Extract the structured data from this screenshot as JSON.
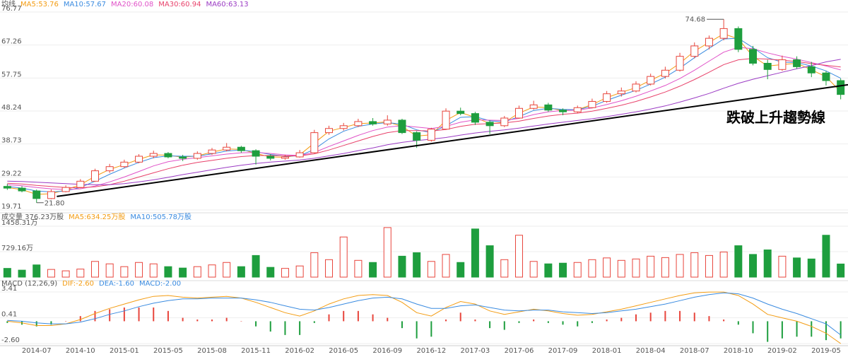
{
  "chart_data": [
    {
      "type": "candlestick",
      "legend_title": "均线",
      "ylim": [
        19.71,
        76.77
      ],
      "yticks": [
        76.77,
        67.26,
        57.75,
        48.24,
        38.73,
        29.22,
        19.71
      ],
      "grid": true,
      "up_color": "#e8453c",
      "down_color": "#1e9e3e",
      "candles": [
        [
          26.5,
          27.2,
          25.5,
          26.0
        ],
        [
          26.0,
          26.6,
          24.8,
          25.2
        ],
        [
          25.2,
          25.6,
          21.8,
          23.0
        ],
        [
          23.0,
          25.6,
          22.8,
          25.0
        ],
        [
          25.0,
          26.8,
          24.8,
          26.2
        ],
        [
          26.2,
          28.6,
          26.0,
          28.0
        ],
        [
          28.0,
          31.6,
          27.8,
          31.0
        ],
        [
          31.0,
          33.0,
          30.4,
          32.2
        ],
        [
          32.2,
          34.2,
          31.8,
          33.5
        ],
        [
          33.5,
          35.8,
          33.2,
          35.2
        ],
        [
          35.2,
          36.8,
          34.6,
          36.0
        ],
        [
          36.0,
          36.4,
          34.6,
          35.0
        ],
        [
          35.0,
          35.6,
          33.8,
          34.6
        ],
        [
          34.6,
          36.6,
          34.2,
          36.0
        ],
        [
          36.0,
          37.6,
          35.6,
          37.0
        ],
        [
          37.0,
          39.0,
          36.6,
          37.8
        ],
        [
          37.8,
          38.2,
          36.2,
          36.8
        ],
        [
          36.8,
          37.2,
          32.8,
          35.2
        ],
        [
          35.2,
          35.8,
          34.0,
          34.6
        ],
        [
          34.6,
          35.6,
          34.2,
          35.0
        ],
        [
          35.0,
          37.0,
          34.8,
          36.2
        ],
        [
          36.2,
          42.8,
          36.0,
          42.0
        ],
        [
          42.0,
          44.0,
          41.4,
          43.2
        ],
        [
          43.2,
          44.8,
          42.6,
          44.0
        ],
        [
          44.0,
          46.0,
          43.6,
          45.2
        ],
        [
          45.2,
          46.2,
          44.0,
          44.5
        ],
        [
          44.5,
          47.0,
          44.0,
          45.6
        ],
        [
          45.6,
          46.0,
          41.6,
          42.0
        ],
        [
          42.0,
          42.4,
          37.6,
          39.8
        ],
        [
          39.8,
          43.4,
          39.4,
          43.0
        ],
        [
          43.0,
          49.0,
          42.8,
          48.2
        ],
        [
          48.2,
          49.2,
          47.0,
          47.5
        ],
        [
          47.5,
          48.0,
          44.2,
          45.0
        ],
        [
          45.0,
          45.6,
          41.6,
          44.0
        ],
        [
          44.0,
          46.8,
          43.6,
          46.2
        ],
        [
          46.2,
          49.8,
          46.0,
          49.0
        ],
        [
          49.0,
          51.2,
          48.6,
          50.0
        ],
        [
          50.0,
          50.6,
          48.0,
          48.5
        ],
        [
          48.5,
          49.0,
          47.0,
          48.0
        ],
        [
          48.0,
          49.8,
          47.6,
          49.2
        ],
        [
          49.2,
          51.8,
          49.0,
          51.0
        ],
        [
          51.0,
          54.0,
          50.6,
          53.2
        ],
        [
          53.2,
          55.0,
          52.4,
          54.0
        ],
        [
          54.0,
          56.8,
          53.6,
          56.0
        ],
        [
          56.0,
          59.0,
          55.6,
          58.2
        ],
        [
          58.2,
          61.0,
          57.6,
          60.0
        ],
        [
          60.0,
          65.0,
          59.6,
          64.0
        ],
        [
          64.0,
          68.0,
          63.4,
          67.0
        ],
        [
          67.0,
          70.0,
          66.0,
          69.2
        ],
        [
          69.2,
          74.68,
          68.6,
          72.0
        ],
        [
          72.0,
          72.6,
          65.2,
          66.0
        ],
        [
          66.0,
          67.0,
          61.4,
          62.0
        ],
        [
          62.0,
          63.0,
          57.4,
          60.2
        ],
        [
          60.2,
          64.2,
          59.8,
          63.0
        ],
        [
          63.0,
          64.0,
          60.4,
          61.0
        ],
        [
          61.0,
          62.4,
          58.0,
          59.2
        ],
        [
          59.2,
          59.8,
          55.6,
          57.0
        ],
        [
          57.0,
          57.6,
          51.6,
          53.0
        ]
      ],
      "max_label": {
        "value": 74.68,
        "label": "74.68"
      },
      "min_label": {
        "value": 21.8,
        "label": "21.80"
      },
      "trendline_values": [
        23.6,
        55.8
      ],
      "annotation": "跌破上升趨勢線",
      "series": [
        {
          "name": "MA5:53.76",
          "color": "#f39c12",
          "values": [
            26.2,
            25.6,
            24.2,
            24.4,
            25.5,
            27.0,
            29.4,
            31.4,
            32.8,
            34.3,
            35.6,
            35.5,
            34.9,
            35.3,
            36.4,
            37.3,
            37.2,
            36.0,
            35.0,
            34.9,
            35.6,
            39.0,
            42.4,
            43.5,
            44.6,
            44.8,
            45.1,
            43.8,
            41.0,
            41.4,
            45.5,
            47.8,
            46.4,
            44.6,
            45.0,
            47.6,
            49.4,
            49.2,
            48.3,
            48.6,
            50.1,
            52.1,
            53.6,
            55.0,
            57.1,
            59.1,
            62.0,
            65.5,
            68.0,
            70.5,
            69.0,
            64.0,
            61.2,
            61.6,
            62.0,
            60.1,
            58.1,
            53.76
          ]
        },
        {
          "name": "MA10:57.67",
          "color": "#3a8be0",
          "values": [
            26.5,
            26.0,
            25.2,
            24.9,
            25.2,
            26.2,
            28.0,
            30.0,
            31.8,
            33.4,
            34.8,
            35.3,
            35.2,
            35.2,
            35.9,
            36.7,
            37.0,
            36.5,
            35.7,
            35.2,
            35.3,
            37.2,
            40.2,
            42.4,
            43.8,
            44.5,
            44.9,
            44.4,
            42.8,
            42.0,
            44.0,
            46.4,
            46.6,
            45.4,
            45.1,
            46.6,
            48.4,
            49.0,
            48.7,
            48.6,
            49.6,
            51.3,
            52.8,
            54.2,
            56.0,
            58.0,
            60.6,
            63.6,
            66.3,
            69.0,
            69.2,
            66.5,
            63.6,
            62.3,
            62.2,
            61.2,
            59.8,
            57.67
          ]
        },
        {
          "name": "MA20:60.08",
          "color": "#e052c8",
          "values": [
            27.0,
            26.7,
            26.2,
            25.8,
            25.6,
            25.8,
            26.6,
            27.8,
            29.2,
            30.8,
            32.4,
            33.6,
            34.3,
            34.8,
            35.3,
            35.8,
            36.2,
            36.3,
            36.0,
            35.6,
            35.4,
            36.3,
            38.0,
            39.6,
            41.2,
            42.6,
            43.6,
            44.0,
            43.6,
            43.2,
            43.8,
            45.0,
            45.7,
            45.6,
            45.5,
            46.1,
            47.2,
            48.0,
            48.4,
            48.5,
            49.1,
            50.1,
            51.2,
            52.5,
            54.0,
            55.6,
            57.6,
            60.0,
            62.6,
            65.2,
            66.6,
            66.2,
            65.0,
            64.0,
            63.2,
            62.2,
            61.2,
            60.08
          ]
        },
        {
          "name": "MA30:60.94",
          "color": "#e8416a",
          "values": [
            27.4,
            27.2,
            26.8,
            26.5,
            26.2,
            26.1,
            26.4,
            27.0,
            28.0,
            29.2,
            30.4,
            31.6,
            32.6,
            33.4,
            34.0,
            34.6,
            35.1,
            35.4,
            35.4,
            35.3,
            35.3,
            35.9,
            37.0,
            38.3,
            39.6,
            40.9,
            42.0,
            42.6,
            42.6,
            42.5,
            42.9,
            43.8,
            44.4,
            44.6,
            44.8,
            45.3,
            46.1,
            46.8,
            47.3,
            47.6,
            48.2,
            49.0,
            49.9,
            51.0,
            52.3,
            53.7,
            55.4,
            57.3,
            59.4,
            61.6,
            63.0,
            63.4,
            63.2,
            62.9,
            62.5,
            61.9,
            61.4,
            60.94
          ]
        },
        {
          "name": "MA60:63.13",
          "color": "#9b3bc4",
          "values": [
            28.0,
            27.9,
            27.7,
            27.5,
            27.3,
            27.1,
            27.0,
            27.0,
            27.3,
            27.8,
            28.4,
            29.1,
            29.9,
            30.6,
            31.3,
            32.0,
            32.6,
            33.1,
            33.5,
            33.8,
            34.1,
            34.6,
            35.3,
            36.0,
            36.8,
            37.6,
            38.5,
            39.2,
            39.7,
            40.1,
            40.6,
            41.3,
            41.9,
            42.4,
            42.8,
            43.3,
            43.9,
            44.5,
            45.0,
            45.5,
            46.0,
            46.6,
            47.3,
            48.0,
            48.8,
            49.7,
            50.8,
            52.0,
            53.3,
            54.8,
            56.2,
            57.4,
            58.4,
            59.4,
            60.4,
            61.3,
            62.4,
            63.13
          ]
        }
      ]
    },
    {
      "type": "bar",
      "title": "成交量 376.23万股",
      "legend": [
        {
          "name": "MA5:634.25万股",
          "color": "#f39c12"
        },
        {
          "name": "MA10:505.78万股",
          "color": "#3a8be0"
        }
      ],
      "ylim": [
        0,
        1458.31
      ],
      "yticks": [
        {
          "value": 1458.31,
          "label": "1458.31万"
        },
        {
          "value": 729.16,
          "label": "729.16万"
        }
      ],
      "values": [
        250,
        200,
        350,
        220,
        180,
        230,
        450,
        380,
        300,
        420,
        380,
        300,
        260,
        300,
        350,
        420,
        300,
        620,
        280,
        250,
        320,
        700,
        500,
        1150,
        480,
        420,
        1420,
        600,
        700,
        450,
        650,
        420,
        1380,
        900,
        500,
        1200,
        450,
        380,
        400,
        420,
        500,
        550,
        480,
        520,
        600,
        560,
        650,
        700,
        620,
        720,
        900,
        650,
        780,
        600,
        550,
        520,
        1200,
        376.23
      ]
    },
    {
      "type": "macd",
      "title": "MACD (12,26,9)",
      "ylim": [
        -2.6,
        3.41
      ],
      "yticks": [
        3.41,
        0.41,
        {
          "value": -2.6,
          "label": "-2.60"
        }
      ],
      "categories": [
        null,
        null,
        "2014-07",
        null,
        null,
        "2014-10",
        null,
        null,
        "2015-01",
        null,
        null,
        "2015-05",
        null,
        null,
        "2015-08",
        null,
        null,
        "2015-11",
        null,
        null,
        "2016-02",
        null,
        null,
        "2016-05",
        null,
        null,
        "2016-09",
        null,
        null,
        "2016-12",
        null,
        null,
        "2017-03",
        null,
        null,
        "2017-06",
        null,
        null,
        "2017-09",
        null,
        null,
        "2018-01",
        null,
        null,
        "2018-04",
        null,
        null,
        "2018-07",
        null,
        null,
        "2018-10",
        null,
        null,
        "2019-02",
        null,
        null,
        "2019-05",
        null
      ],
      "histogram_name": "MACD:-2.00",
      "histogram": [
        -0.2,
        -0.4,
        -0.6,
        -0.4,
        0,
        0.6,
        1.2,
        1.4,
        1.6,
        1.6,
        1.6,
        1.2,
        0.4,
        0.2,
        0.2,
        0.4,
        0,
        -0.6,
        -1.2,
        -1.6,
        -1.6,
        -0.2,
        0.8,
        1.2,
        1.2,
        0.8,
        0.4,
        -0.8,
        -2.0,
        -1.8,
        0.2,
        1.0,
        0.2,
        -0.8,
        -1.0,
        -0.2,
        0.2,
        -0.2,
        -0.4,
        -0.6,
        -0.2,
        0.2,
        0.4,
        0.8,
        1.0,
        1.2,
        1.2,
        1.0,
        0.6,
        0.2,
        -0.4,
        -1.4,
        -2.4,
        -2.0,
        -1.8,
        -1.8,
        -2.2,
        -2.0
      ],
      "series": [
        {
          "name": "DIF:-2.60",
          "color": "#f39c12",
          "values": [
            0.0,
            -0.2,
            -0.5,
            -0.5,
            -0.3,
            0.2,
            0.9,
            1.5,
            2.0,
            2.5,
            2.9,
            3.0,
            2.8,
            2.7,
            2.8,
            2.9,
            2.7,
            2.2,
            1.6,
            1.0,
            0.6,
            1.2,
            2.0,
            2.6,
            3.0,
            3.1,
            3.0,
            2.2,
            1.0,
            0.6,
            1.6,
            2.3,
            2.0,
            1.2,
            0.8,
            1.1,
            1.4,
            1.2,
            0.9,
            0.7,
            0.8,
            1.1,
            1.4,
            1.8,
            2.2,
            2.6,
            3.0,
            3.3,
            3.4,
            3.4,
            3.0,
            2.0,
            0.8,
            0.4,
            0.0,
            -0.6,
            -1.4,
            -2.6
          ]
        },
        {
          "name": "DEA:-1.60",
          "color": "#3a8be0",
          "values": [
            0.1,
            0.0,
            -0.2,
            -0.3,
            -0.3,
            -0.1,
            0.3,
            0.8,
            1.2,
            1.7,
            2.1,
            2.4,
            2.6,
            2.6,
            2.7,
            2.7,
            2.7,
            2.5,
            2.2,
            1.8,
            1.4,
            1.3,
            1.6,
            2.0,
            2.4,
            2.7,
            2.8,
            2.6,
            2.0,
            1.5,
            1.5,
            1.8,
            1.9,
            1.6,
            1.3,
            1.2,
            1.3,
            1.3,
            1.1,
            1.0,
            0.9,
            1.0,
            1.2,
            1.4,
            1.7,
            2.0,
            2.4,
            2.8,
            3.1,
            3.3,
            3.2,
            2.7,
            2.0,
            1.4,
            0.9,
            0.3,
            -0.3,
            -1.6
          ]
        }
      ]
    }
  ]
}
